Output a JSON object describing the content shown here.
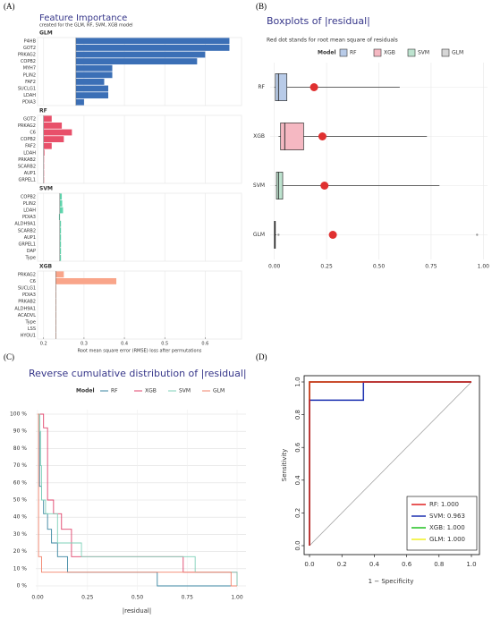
{
  "chart_data": [
    {
      "type": "bar",
      "label": "(A)",
      "title": "Feature Importance",
      "subtitle": "created for the GLM, RF, SVM, XGB model",
      "xlabel": "Root mean square error (RMSE) loss after permutations",
      "xlim": [
        0.185,
        0.69
      ],
      "xticks": [
        0.2,
        0.3,
        0.4,
        0.5,
        0.6
      ],
      "grid": true,
      "series": [
        {
          "name": "GLM",
          "color": "#3b6fb6",
          "baseline": 0.28,
          "categories": [
            "P4HB",
            "GOT2",
            "PRKAG2",
            "COPB2",
            "MYH7",
            "PLIN2",
            "FAF2",
            "SUCLG1",
            "LDAH",
            "PDIA3"
          ],
          "values": [
            0.66,
            0.66,
            0.6,
            0.58,
            0.37,
            0.37,
            0.35,
            0.36,
            0.36,
            0.3
          ]
        },
        {
          "name": "RF",
          "color": "#e8506a",
          "baseline": 0.2,
          "categories": [
            "GOT2",
            "PRKAG2",
            "C6",
            "COPB2",
            "FAF2",
            "LDAH",
            "PRKAB2",
            "SCARB2",
            "AUP1",
            "GRPEL1"
          ],
          "values": [
            0.22,
            0.245,
            0.27,
            0.25,
            0.22,
            0.202,
            0.201,
            0.201,
            0.201,
            0.201
          ]
        },
        {
          "name": "SVM",
          "color": "#5fd6ae",
          "baseline": 0.24,
          "categories": [
            "COPB2",
            "PLIN2",
            "LDAH",
            "PDIA3",
            "ALDH9A1",
            "SCARB2",
            "AUP1",
            "GRPEL1",
            "DAP",
            "Type"
          ],
          "values": [
            0.245,
            0.246,
            0.248,
            0.238,
            0.243,
            0.243,
            0.243,
            0.243,
            0.243,
            0.243
          ]
        },
        {
          "name": "XGB",
          "color": "#f9a58a",
          "baseline": 0.23,
          "categories": [
            "PRKAG2",
            "C6",
            "SUCLG1",
            "PDIA3",
            "PRKAB2",
            "ALDH9A1",
            "ACADVL",
            "Type",
            "LSS",
            "HYOU1"
          ],
          "values": [
            0.25,
            0.38,
            0.231,
            0.231,
            0.231,
            0.231,
            0.231,
            0.231,
            0.231,
            0.231
          ]
        }
      ]
    },
    {
      "type": "box",
      "label": "(B)",
      "title": "Boxplots of |residual|",
      "subtitle": "Red dot stands for root mean square of residuals",
      "legend_title": "Model",
      "xlim": [
        -0.02,
        1.02
      ],
      "xticks": [
        {
          "value": 0,
          "label": "0.00"
        },
        {
          "value": 0.25,
          "label": "0.25"
        },
        {
          "value": 0.5,
          "label": "0.50"
        },
        {
          "value": 0.75,
          "label": "0.75"
        },
        {
          "value": 1,
          "label": "1.00"
        }
      ],
      "dot_color": "#e03030",
      "boxes": [
        {
          "name": "RF",
          "color": "#b8cbe8",
          "whislo": 0.0,
          "q1": 0.005,
          "median": 0.02,
          "q3": 0.06,
          "whishi": 0.6,
          "outliers": [],
          "rmse": 0.19
        },
        {
          "name": "XGB",
          "color": "#f5b8c2",
          "whislo": 0.02,
          "q1": 0.03,
          "median": 0.05,
          "q3": 0.14,
          "whishi": 0.73,
          "outliers": [],
          "rmse": 0.23
        },
        {
          "name": "SVM",
          "color": "#bde3cf",
          "whislo": 0.005,
          "q1": 0.01,
          "median": 0.02,
          "q3": 0.04,
          "whishi": 0.79,
          "outliers": [],
          "rmse": 0.24
        },
        {
          "name": "GLM",
          "color": "#d6d6d6",
          "whislo": 0.0,
          "q1": 0.0,
          "median": 0.002,
          "q3": 0.005,
          "whishi": 0.01,
          "outliers": [
            0.02,
            0.97
          ],
          "rmse": 0.28
        }
      ]
    },
    {
      "type": "step",
      "label": "(C)",
      "title": "Reverse cumulative distribution of |residual|",
      "legend_title": "Model",
      "xlabel": "|residual|",
      "xlim": [
        0,
        1
      ],
      "ylim": [
        0,
        1
      ],
      "xticks": [
        {
          "value": 0,
          "label": "0.00"
        },
        {
          "value": 0.25,
          "label": "0.25"
        },
        {
          "value": 0.5,
          "label": "0.50"
        },
        {
          "value": 0.75,
          "label": "0.75"
        },
        {
          "value": 1,
          "label": "1.00"
        }
      ],
      "yticks": [
        {
          "value": 0,
          "label": "0 %"
        },
        {
          "value": 0.1,
          "label": "10 %"
        },
        {
          "value": 0.2,
          "label": "20 %"
        },
        {
          "value": 0.3,
          "label": "30 %"
        },
        {
          "value": 0.4,
          "label": "40 %"
        },
        {
          "value": 0.5,
          "label": "50 %"
        },
        {
          "value": 0.6,
          "label": "60 %"
        },
        {
          "value": 0.7,
          "label": "70 %"
        },
        {
          "value": 0.8,
          "label": "80 %"
        },
        {
          "value": 0.9,
          "label": "90 %"
        },
        {
          "value": 1,
          "label": "100 %"
        }
      ],
      "series": [
        {
          "name": "RF",
          "color": "#3a86a0",
          "x": [
            0,
            0.01,
            0.02,
            0.03,
            0.05,
            0.07,
            0.1,
            0.15,
            0.6,
            1
          ],
          "values": [
            1,
            0.58,
            0.5,
            0.42,
            0.33,
            0.25,
            0.17,
            0.08,
            0,
            0
          ]
        },
        {
          "name": "XGB",
          "color": "#e0436b",
          "x": [
            0,
            0.03,
            0.05,
            0.08,
            0.12,
            0.17,
            0.73,
            1
          ],
          "values": [
            1,
            0.92,
            0.5,
            0.42,
            0.33,
            0.17,
            0.08,
            0
          ]
        },
        {
          "name": "SVM",
          "color": "#7fd1b9",
          "x": [
            0,
            0.01,
            0.015,
            0.02,
            0.04,
            0.1,
            0.22,
            0.79,
            1
          ],
          "values": [
            1,
            0.9,
            0.7,
            0.5,
            0.42,
            0.25,
            0.17,
            0.08,
            0
          ]
        },
        {
          "name": "GLM",
          "color": "#f2836b",
          "x": [
            0,
            0.005,
            0.02,
            0.97,
            1
          ],
          "values": [
            1,
            0.17,
            0.08,
            0,
            0
          ]
        }
      ]
    },
    {
      "type": "roc",
      "label": "(D)",
      "xlabel": "1 − Specificity",
      "ylabel": "Sensitivity",
      "xlim": [
        0,
        1
      ],
      "ylim": [
        0,
        1
      ],
      "xticks": [
        {
          "value": 0,
          "label": "0.0"
        },
        {
          "value": 0.2,
          "label": "0.2"
        },
        {
          "value": 0.4,
          "label": "0.4"
        },
        {
          "value": 0.6,
          "label": "0.6"
        },
        {
          "value": 0.8,
          "label": "0.8"
        },
        {
          "value": 1,
          "label": "1.0"
        }
      ],
      "yticks": [
        {
          "value": 0,
          "label": "0.0"
        },
        {
          "value": 0.2,
          "label": "0.2"
        },
        {
          "value": 0.4,
          "label": "0.4"
        },
        {
          "value": 0.6,
          "label": "0.6"
        },
        {
          "value": 0.8,
          "label": "0.8"
        },
        {
          "value": 1,
          "label": "1.0"
        }
      ],
      "series": [
        {
          "name": "RF: 1.000",
          "color": "#e02020",
          "x": [
            0,
            0,
            1
          ],
          "values": [
            0,
            1,
            1
          ]
        },
        {
          "name": "SVM: 0.963",
          "color": "#1a2fb0",
          "x": [
            0,
            0,
            0.333,
            0.333,
            1
          ],
          "values": [
            0,
            0.889,
            0.889,
            1,
            1
          ]
        },
        {
          "name": "XGB: 1.000",
          "color": "#20c020",
          "x": [
            0,
            0,
            1
          ],
          "values": [
            0,
            1,
            1
          ]
        },
        {
          "name": "GLM: 1.000",
          "color": "#f0f020",
          "x": [
            0,
            0,
            1
          ],
          "values": [
            0,
            1,
            1
          ]
        }
      ]
    }
  ]
}
